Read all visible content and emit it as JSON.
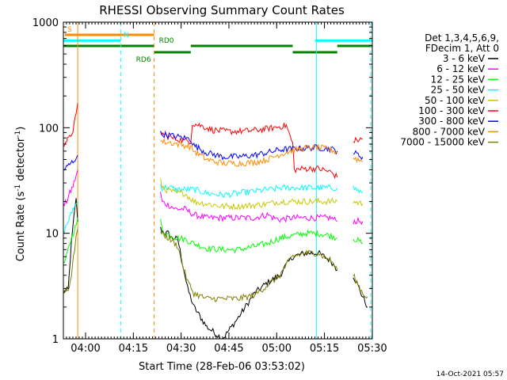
{
  "chart_data": {
    "type": "line",
    "title": "RHESSI Observing Summary Count Rates",
    "xlabel": "Start Time (28-Feb-06 03:53:02)",
    "ylabel": "Count Rate (s⁻¹ detector⁻¹)",
    "ylabel_parts": {
      "main": "Count Rate (s",
      "sup1": "-1",
      "mid": " detector",
      "sup2": "-1",
      "end": ")"
    },
    "y_scale": "log",
    "ylim": [
      1,
      1000
    ],
    "xlim_minutes": [
      0,
      97
    ],
    "y_ticks": [
      {
        "value": 1,
        "label": "1"
      },
      {
        "value": 10,
        "label": "10"
      },
      {
        "value": 100,
        "label": "100"
      },
      {
        "value": 1000,
        "label": "1000"
      }
    ],
    "x_ticks": [
      {
        "minute": 6.97,
        "label": "04:00"
      },
      {
        "minute": 21.97,
        "label": "04:15"
      },
      {
        "minute": 36.97,
        "label": "04:30"
      },
      {
        "minute": 51.97,
        "label": "04:45"
      },
      {
        "minute": 66.97,
        "label": "05:00"
      },
      {
        "minute": 81.97,
        "label": "05:15"
      },
      {
        "minute": 96.97,
        "label": "05:30"
      }
    ],
    "legend": {
      "placement": "right",
      "header": [
        "Det 1,3,4,5,6,9,",
        "FDecim 1, Att 0"
      ],
      "entries": [
        {
          "label": "3 - 6 keV",
          "color": "#000000"
        },
        {
          "label": "6 - 12 keV",
          "color": "#ff00ff"
        },
        {
          "label": "12 - 25 keV",
          "color": "#00ff00"
        },
        {
          "label": "25 - 50 keV",
          "color": "#00ffff"
        },
        {
          "label": "50 - 100 keV",
          "color": "#c8c800"
        },
        {
          "label": "100 - 300 keV",
          "color": "#ff0000"
        },
        {
          "label": "300 - 800 keV",
          "color": "#0000ff"
        },
        {
          "label": "800 - 7000 keV",
          "color": "#ff8c00"
        },
        {
          "label": "7000 - 15000 keV",
          "color": "#808000"
        }
      ]
    },
    "flag_bars": [
      {
        "label": "S",
        "color": "#ff8c00",
        "y": 0.96,
        "segments": [
          [
            0.5,
            28.5
          ]
        ]
      },
      {
        "label": "N",
        "color": "#00ffff",
        "y": 0.942,
        "segments": [
          [
            0,
            18
          ],
          [
            79,
            97
          ]
        ]
      },
      {
        "label": "RD0",
        "color": "#008000",
        "y": 0.925,
        "segments": [
          [
            0,
            28.5
          ],
          [
            40,
            72
          ],
          [
            86,
            97
          ]
        ]
      },
      {
        "label": "RD6",
        "color": "#008000",
        "y": 0.905,
        "segments": [
          [
            28.5,
            40
          ],
          [
            72,
            86
          ]
        ]
      }
    ],
    "vertical_markers": [
      {
        "minute": 4.5,
        "color": "#ff8c00",
        "style": "solid"
      },
      {
        "minute": 18.0,
        "color": "#00ffff",
        "style": "dashed"
      },
      {
        "minute": 28.5,
        "color": "#ff8c00",
        "style": "dashed"
      },
      {
        "minute": 79.5,
        "color": "#00ffff",
        "style": "solid"
      },
      {
        "minute": 96.5,
        "color": "#00ffff",
        "style": "dashed"
      }
    ],
    "series": [
      {
        "name": "3 - 6 keV",
        "color": "#000000",
        "points": [
          [
            0,
            2.8
          ],
          [
            1.5,
            2.9
          ],
          [
            2.5,
            8
          ],
          [
            3.5,
            16
          ],
          [
            4,
            22
          ],
          [
            4.5,
            13
          ],
          [
            5,
            null
          ],
          [
            30.5,
            11
          ],
          [
            32,
            10
          ],
          [
            33,
            10
          ],
          [
            34,
            9
          ],
          [
            35,
            9
          ],
          [
            36,
            8.6
          ],
          [
            37,
            6
          ],
          [
            39,
            3
          ],
          [
            41,
            2
          ],
          [
            45,
            1.3
          ],
          [
            50,
            1
          ],
          [
            55,
            1.6
          ],
          [
            60,
            2.7
          ],
          [
            64,
            3.4
          ],
          [
            68,
            4
          ],
          [
            70,
            5
          ],
          [
            72,
            6
          ],
          [
            76,
            6.5
          ],
          [
            80,
            6.5
          ],
          [
            84,
            5.5
          ],
          [
            86,
            4.5
          ],
          [
            88,
            null
          ],
          [
            91,
            4
          ],
          [
            94,
            2.5
          ],
          [
            95.5,
            2
          ],
          [
            96.5,
            null
          ]
        ]
      },
      {
        "name": "6 - 12 keV",
        "color": "#ff00ff",
        "points": [
          [
            0,
            18
          ],
          [
            1,
            20
          ],
          [
            2,
            24
          ],
          [
            3,
            28
          ],
          [
            4,
            35
          ],
          [
            4.5,
            40
          ],
          [
            5,
            null
          ],
          [
            30.5,
            24
          ],
          [
            31,
            20
          ],
          [
            32,
            19
          ],
          [
            34,
            18
          ],
          [
            35,
            17
          ],
          [
            36,
            17
          ],
          [
            38,
            17
          ],
          [
            41,
            15
          ],
          [
            45,
            14
          ],
          [
            50,
            14
          ],
          [
            55,
            14
          ],
          [
            60,
            14
          ],
          [
            64,
            15
          ],
          [
            66,
            14
          ],
          [
            68,
            13.5
          ],
          [
            72,
            14
          ],
          [
            76,
            14
          ],
          [
            80,
            14
          ],
          [
            84,
            14
          ],
          [
            86,
            13
          ],
          [
            88,
            null
          ],
          [
            91,
            13
          ],
          [
            94,
            13
          ],
          [
            96.5,
            null
          ]
        ]
      },
      {
        "name": "12 - 25 keV",
        "color": "#00ff00",
        "points": [
          [
            0,
            5
          ],
          [
            1,
            6
          ],
          [
            2,
            8
          ],
          [
            3,
            10
          ],
          [
            4,
            12
          ],
          [
            4.5,
            14
          ],
          [
            5,
            null
          ],
          [
            30.5,
            13
          ],
          [
            31,
            11
          ],
          [
            32,
            10
          ],
          [
            34,
            9.5
          ],
          [
            35,
            9.2
          ],
          [
            36,
            9
          ],
          [
            38,
            8.8
          ],
          [
            41,
            8
          ],
          [
            45,
            7.2
          ],
          [
            50,
            7
          ],
          [
            55,
            7
          ],
          [
            60,
            7.5
          ],
          [
            64,
            8
          ],
          [
            66,
            8.5
          ],
          [
            68,
            9
          ],
          [
            72,
            9.5
          ],
          [
            76,
            10
          ],
          [
            80,
            10
          ],
          [
            84,
            9.5
          ],
          [
            86,
            9
          ],
          [
            88,
            null
          ],
          [
            91,
            9
          ],
          [
            94,
            8
          ],
          [
            96.5,
            null
          ]
        ]
      },
      {
        "name": "25 - 50 keV",
        "color": "#00ffff",
        "points": [
          [
            0,
            10
          ],
          [
            1,
            12
          ],
          [
            2,
            14
          ],
          [
            3,
            17
          ],
          [
            4,
            19
          ],
          [
            4.5,
            20
          ],
          [
            5,
            null
          ],
          [
            30.5,
            29
          ],
          [
            31,
            27
          ],
          [
            32,
            27
          ],
          [
            34,
            27
          ],
          [
            35,
            26
          ],
          [
            36,
            26
          ],
          [
            38,
            26
          ],
          [
            41,
            26
          ],
          [
            45,
            24
          ],
          [
            50,
            23
          ],
          [
            55,
            24
          ],
          [
            60,
            25
          ],
          [
            64,
            26
          ],
          [
            66,
            26
          ],
          [
            68,
            27
          ],
          [
            72,
            27
          ],
          [
            76,
            27
          ],
          [
            80,
            27
          ],
          [
            84,
            27
          ],
          [
            86,
            27
          ],
          [
            88,
            null
          ],
          [
            91,
            27
          ],
          [
            94,
            24
          ],
          [
            96.5,
            null
          ]
        ]
      },
      {
        "name": "50 - 100 keV",
        "color": "#c8c800",
        "points": [
          [
            0,
            null
          ],
          [
            30.5,
            31
          ],
          [
            31,
            28
          ],
          [
            32,
            26
          ],
          [
            34,
            25
          ],
          [
            35,
            24
          ],
          [
            36,
            24
          ],
          [
            38,
            24
          ],
          [
            41,
            20
          ],
          [
            45,
            19
          ],
          [
            50,
            18
          ],
          [
            55,
            18
          ],
          [
            60,
            18.5
          ],
          [
            64,
            19
          ],
          [
            66,
            19.5
          ],
          [
            68,
            20
          ],
          [
            72,
            20
          ],
          [
            76,
            20
          ],
          [
            80,
            20
          ],
          [
            84,
            20
          ],
          [
            86,
            20
          ],
          [
            88,
            null
          ],
          [
            91,
            20
          ],
          [
            94,
            19
          ],
          [
            96.5,
            null
          ]
        ]
      },
      {
        "name": "100 - 300 keV",
        "color": "#ff0000",
        "points": [
          [
            0,
            70
          ],
          [
            1,
            75
          ],
          [
            2,
            80
          ],
          [
            3,
            95
          ],
          [
            4,
            130
          ],
          [
            4.5,
            170
          ],
          [
            5,
            null
          ],
          [
            30.5,
            90
          ],
          [
            32,
            85
          ],
          [
            34,
            80
          ],
          [
            36,
            78
          ],
          [
            38,
            75
          ],
          [
            40,
            75
          ],
          [
            40.5,
            110
          ],
          [
            43,
            105
          ],
          [
            47,
            95
          ],
          [
            52,
            92
          ],
          [
            57,
            93
          ],
          [
            62,
            96
          ],
          [
            66,
            100
          ],
          [
            70,
            105
          ],
          [
            72,
            70
          ],
          [
            72.5,
            40
          ],
          [
            76,
            41
          ],
          [
            80,
            41
          ],
          [
            84,
            38
          ],
          [
            86,
            34
          ],
          [
            88,
            null
          ],
          [
            91,
            75
          ],
          [
            94,
            78
          ],
          [
            96.5,
            null
          ]
        ]
      },
      {
        "name": "300 - 800 keV",
        "color": "#0000ff",
        "points": [
          [
            0,
            40
          ],
          [
            1,
            42
          ],
          [
            2,
            45
          ],
          [
            3,
            48
          ],
          [
            4,
            52
          ],
          [
            4.5,
            55
          ],
          [
            5,
            null
          ],
          [
            30.5,
            88
          ],
          [
            32,
            86
          ],
          [
            34,
            84
          ],
          [
            36,
            82
          ],
          [
            38,
            80
          ],
          [
            40,
            78
          ],
          [
            41,
            68
          ],
          [
            45,
            58
          ],
          [
            50,
            53
          ],
          [
            55,
            53
          ],
          [
            60,
            55
          ],
          [
            64,
            58
          ],
          [
            68,
            62
          ],
          [
            72,
            63
          ],
          [
            76,
            64
          ],
          [
            80,
            65
          ],
          [
            84,
            63
          ],
          [
            86,
            60
          ],
          [
            88,
            null
          ],
          [
            91,
            58
          ],
          [
            94,
            53
          ],
          [
            96.5,
            null
          ]
        ]
      },
      {
        "name": "800 - 7000 keV",
        "color": "#ff8c00",
        "points": [
          [
            0,
            null
          ],
          [
            30.5,
            75
          ],
          [
            32,
            73
          ],
          [
            34,
            72
          ],
          [
            36,
            70
          ],
          [
            38,
            68
          ],
          [
            40,
            66
          ],
          [
            41,
            60
          ],
          [
            45,
            50
          ],
          [
            50,
            46
          ],
          [
            55,
            46
          ],
          [
            60,
            47
          ],
          [
            64,
            50
          ],
          [
            68,
            56
          ],
          [
            72,
            61
          ],
          [
            76,
            64
          ],
          [
            80,
            65
          ],
          [
            84,
            62
          ],
          [
            86,
            58
          ],
          [
            88,
            null
          ],
          [
            91,
            52
          ],
          [
            94,
            48
          ],
          [
            96.5,
            null
          ]
        ]
      },
      {
        "name": "7000 - 15000 keV",
        "color": "#808000",
        "points": [
          [
            0,
            2.8
          ],
          [
            1.5,
            2.9
          ],
          [
            2.5,
            4
          ],
          [
            3.5,
            7
          ],
          [
            4,
            10
          ],
          [
            4.5,
            11
          ],
          [
            5,
            null
          ],
          [
            30.5,
            10
          ],
          [
            32,
            9.5
          ],
          [
            33,
            9
          ],
          [
            34,
            8.5
          ],
          [
            35,
            8
          ],
          [
            36,
            7.5
          ],
          [
            37,
            5.5
          ],
          [
            39,
            3.5
          ],
          [
            41,
            2.7
          ],
          [
            45,
            2.4
          ],
          [
            50,
            2.4
          ],
          [
            55,
            2.4
          ],
          [
            60,
            2.6
          ],
          [
            64,
            3.2
          ],
          [
            68,
            4
          ],
          [
            70,
            5
          ],
          [
            72,
            6
          ],
          [
            76,
            6.5
          ],
          [
            80,
            6.5
          ],
          [
            84,
            5.5
          ],
          [
            86,
            4.5
          ],
          [
            88,
            null
          ],
          [
            91,
            4
          ],
          [
            94,
            2.7
          ],
          [
            95.5,
            2.5
          ],
          [
            96.5,
            null
          ]
        ]
      }
    ]
  },
  "footer": {
    "timestamp": "14-Oct-2021 05:57"
  }
}
